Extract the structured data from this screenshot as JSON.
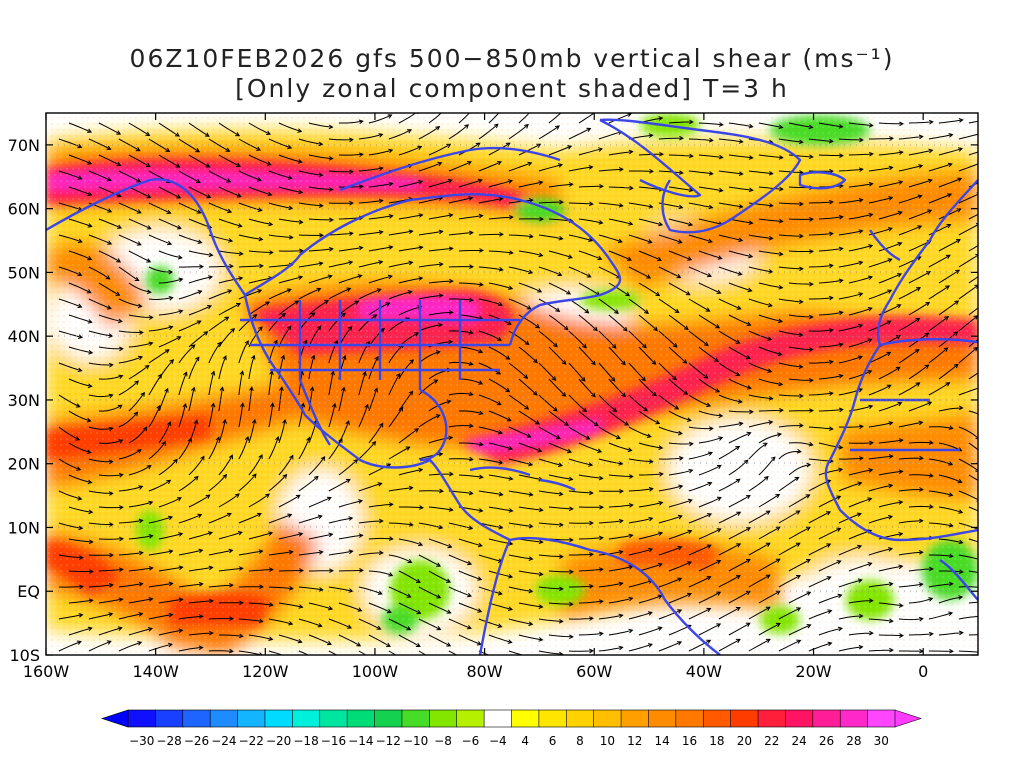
{
  "title": {
    "line1": "06Z10FEB2026 gfs 500−850mb vertical shear (ms⁻¹)",
    "line2": "[Only zonal component shaded] T=3 h"
  },
  "axes": {
    "lat_labels": [
      "70N",
      "60N",
      "50N",
      "40N",
      "30N",
      "20N",
      "10N",
      "EQ",
      "10S"
    ],
    "lat_values": [
      70,
      60,
      50,
      40,
      30,
      20,
      10,
      0,
      -10
    ],
    "lon_labels": [
      "160W",
      "140W",
      "120W",
      "100W",
      "80W",
      "60W",
      "40W",
      "20W",
      "0"
    ],
    "lon_values": [
      -160,
      -140,
      -120,
      -100,
      -80,
      -60,
      -40,
      -20,
      0
    ],
    "lon_range": [
      -160,
      10
    ],
    "lat_range": [
      -10,
      75
    ]
  },
  "colorbar": {
    "labels": [
      "-30",
      "-28",
      "-26",
      "-24",
      "-22",
      "-20",
      "-18",
      "-16",
      "-14",
      "-12",
      "-10",
      "-8",
      "-6",
      "-4",
      "4",
      "6",
      "8",
      "10",
      "12",
      "14",
      "16",
      "18",
      "20",
      "22",
      "24",
      "26",
      "28",
      "30"
    ],
    "colors": [
      "#1010ff",
      "#1a40ff",
      "#1e64ff",
      "#1e8cff",
      "#14b4ff",
      "#00dcff",
      "#00f0dc",
      "#00e6a0",
      "#00dc78",
      "#14d250",
      "#46dc28",
      "#82e600",
      "#b4f000",
      "#ffffff",
      "#ffff00",
      "#ffe600",
      "#ffd200",
      "#ffbe00",
      "#ffa000",
      "#ff8c00",
      "#ff7800",
      "#ff5a00",
      "#ff3c00",
      "#ff1e3c",
      "#ff1464",
      "#ff1e96",
      "#ff28c8",
      "#ff46ff"
    ]
  },
  "map_colors": {
    "coastline": "#3c46e6",
    "streamline": "#000000"
  }
}
